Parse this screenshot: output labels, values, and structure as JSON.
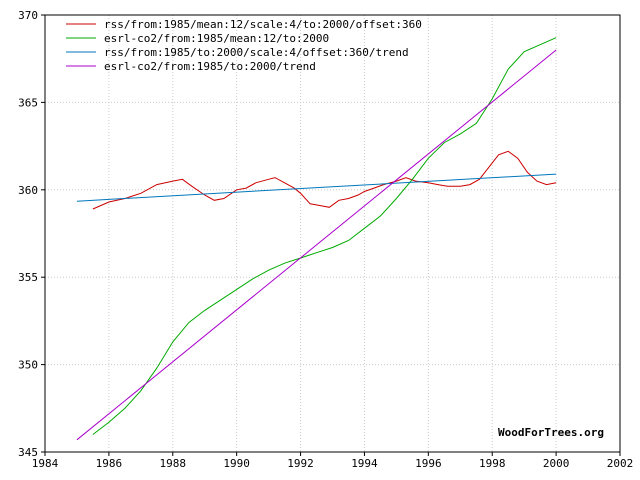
{
  "chart_data": {
    "type": "line",
    "title": "",
    "xlabel": "",
    "ylabel": "",
    "xlim": [
      1984,
      2002
    ],
    "ylim": [
      345,
      370
    ],
    "x_ticks": [
      1984,
      1986,
      1988,
      1990,
      1992,
      1994,
      1996,
      1998,
      2000,
      2002
    ],
    "y_ticks": [
      345,
      350,
      355,
      360,
      365,
      370
    ],
    "grid": true,
    "legend": "top-left",
    "credit": "WoodForTrees.org",
    "series": [
      {
        "name": "rss/from:1985/mean:12/scale:4/to:2000/offset:360",
        "color": "#cc0000",
        "x": [
          1985.5,
          1986.0,
          1986.5,
          1987.0,
          1987.5,
          1988.0,
          1988.3,
          1988.6,
          1989.0,
          1989.3,
          1989.6,
          1990.0,
          1990.3,
          1990.6,
          1991.0,
          1991.2,
          1991.5,
          1991.8,
          1992.0,
          1992.3,
          1992.6,
          1992.9,
          1993.2,
          1993.5,
          1993.8,
          1994.0,
          1994.3,
          1994.6,
          1995.0,
          1995.3,
          1995.6,
          1996.0,
          1996.3,
          1996.6,
          1997.0,
          1997.3,
          1997.6,
          1997.9,
          1998.2,
          1998.5,
          1998.8,
          1999.1,
          1999.4,
          1999.7,
          2000.0
        ],
        "y": [
          358.9,
          359.3,
          359.5,
          359.8,
          360.3,
          360.5,
          360.6,
          360.2,
          359.7,
          359.4,
          359.5,
          360.0,
          360.1,
          360.4,
          360.6,
          360.7,
          360.4,
          360.1,
          359.8,
          359.2,
          359.1,
          359.0,
          359.4,
          359.5,
          359.7,
          359.9,
          360.1,
          360.3,
          360.5,
          360.7,
          360.5,
          360.4,
          360.3,
          360.2,
          360.2,
          360.3,
          360.6,
          361.3,
          362.0,
          362.2,
          361.8,
          361.0,
          360.5,
          360.3,
          360.4
        ]
      },
      {
        "name": "esrl-co2/from:1985/mean:12/to:2000",
        "color": "#00aa00",
        "x": [
          1985.5,
          1986.0,
          1986.5,
          1987.0,
          1987.5,
          1988.0,
          1988.5,
          1989.0,
          1989.5,
          1990.0,
          1990.5,
          1991.0,
          1991.5,
          1992.0,
          1992.5,
          1993.0,
          1993.5,
          1994.0,
          1994.5,
          1995.0,
          1995.5,
          1996.0,
          1996.5,
          1997.0,
          1997.5,
          1998.0,
          1998.5,
          1999.0,
          1999.5,
          2000.0
        ],
        "y": [
          346.0,
          346.7,
          347.5,
          348.5,
          349.8,
          351.3,
          352.4,
          353.1,
          353.7,
          354.3,
          354.9,
          355.4,
          355.8,
          356.1,
          356.4,
          356.7,
          357.1,
          357.8,
          358.5,
          359.5,
          360.6,
          361.8,
          362.7,
          363.2,
          363.8,
          365.2,
          366.9,
          367.9,
          368.3,
          368.7
        ]
      },
      {
        "name": "rss/from:1985/to:2000/scale:4/offset:360/trend",
        "color": "#0077bb",
        "x": [
          1985.0,
          2000.0
        ],
        "y": [
          359.35,
          360.9
        ]
      },
      {
        "name": "esrl-co2/from:1985/to:2000/trend",
        "color": "#aa00cc",
        "x": [
          1985.0,
          2000.0
        ],
        "y": [
          345.7,
          368.0
        ]
      }
    ]
  }
}
